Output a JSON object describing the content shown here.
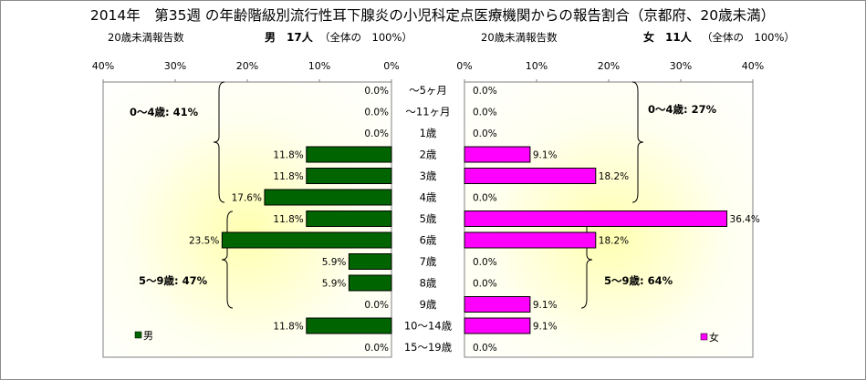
{
  "title": "2014年　第35週 の年齢階級別流行性耳下腺炎の小児科定点医療機関からの報告割合（京都府、20歳未満）",
  "left": {
    "subtitle": "20歳未満報告数",
    "count_label": "男　17人",
    "total_label": "（全体の　100%）",
    "legend": "男",
    "group1_label": "0～4歳: 41%",
    "group2_label": "5～9歳: 47%"
  },
  "right": {
    "subtitle": "20歳未満報告数",
    "count_label": "女　11人",
    "total_label": "（全体の　100%）",
    "legend": "女",
    "group1_label": "0～4歳: 27%",
    "group2_label": "5～9歳: 64%"
  },
  "colors": {
    "male": "#006400",
    "female": "#ff00ff",
    "panel_top": "#ffffff",
    "panel_center": "#ffffb0"
  },
  "chart_data": {
    "type": "bar",
    "orientation": "horizontal-butterfly",
    "categories": [
      "～5ヶ月",
      "～11ヶ月",
      "1歳",
      "2歳",
      "3歳",
      "4歳",
      "5歳",
      "6歳",
      "7歳",
      "8歳",
      "9歳",
      "10～14歳",
      "15～19歳"
    ],
    "series": [
      {
        "name": "男",
        "values": [
          0.0,
          0.0,
          0.0,
          11.8,
          11.8,
          17.6,
          11.8,
          23.5,
          5.9,
          5.9,
          0.0,
          11.8,
          0.0
        ],
        "labels": [
          "0.0%",
          "0.0%",
          "0.0%",
          "11.8%",
          "11.8%",
          "17.6%",
          "11.8%",
          "23.5%",
          "5.9%",
          "5.9%",
          "0.0%",
          "11.8%",
          "0.0%"
        ]
      },
      {
        "name": "女",
        "values": [
          0.0,
          0.0,
          0.0,
          9.1,
          18.2,
          0.0,
          36.4,
          18.2,
          0.0,
          0.0,
          9.1,
          9.1,
          0.0
        ],
        "labels": [
          "0.0%",
          "0.0%",
          "0.0%",
          "9.1%",
          "18.2%",
          "0.0%",
          "36.4%",
          "18.2%",
          "0.0%",
          "0.0%",
          "9.1%",
          "9.1%",
          "0.0%"
        ]
      }
    ],
    "xlim": [
      0,
      40
    ],
    "xticks_left": [
      "40%",
      "30%",
      "20%",
      "10%",
      "0%"
    ],
    "xticks_right": [
      "0%",
      "10%",
      "20%",
      "30%",
      "40%"
    ],
    "grid": false,
    "legend_position": "bottom-left / bottom-right"
  }
}
